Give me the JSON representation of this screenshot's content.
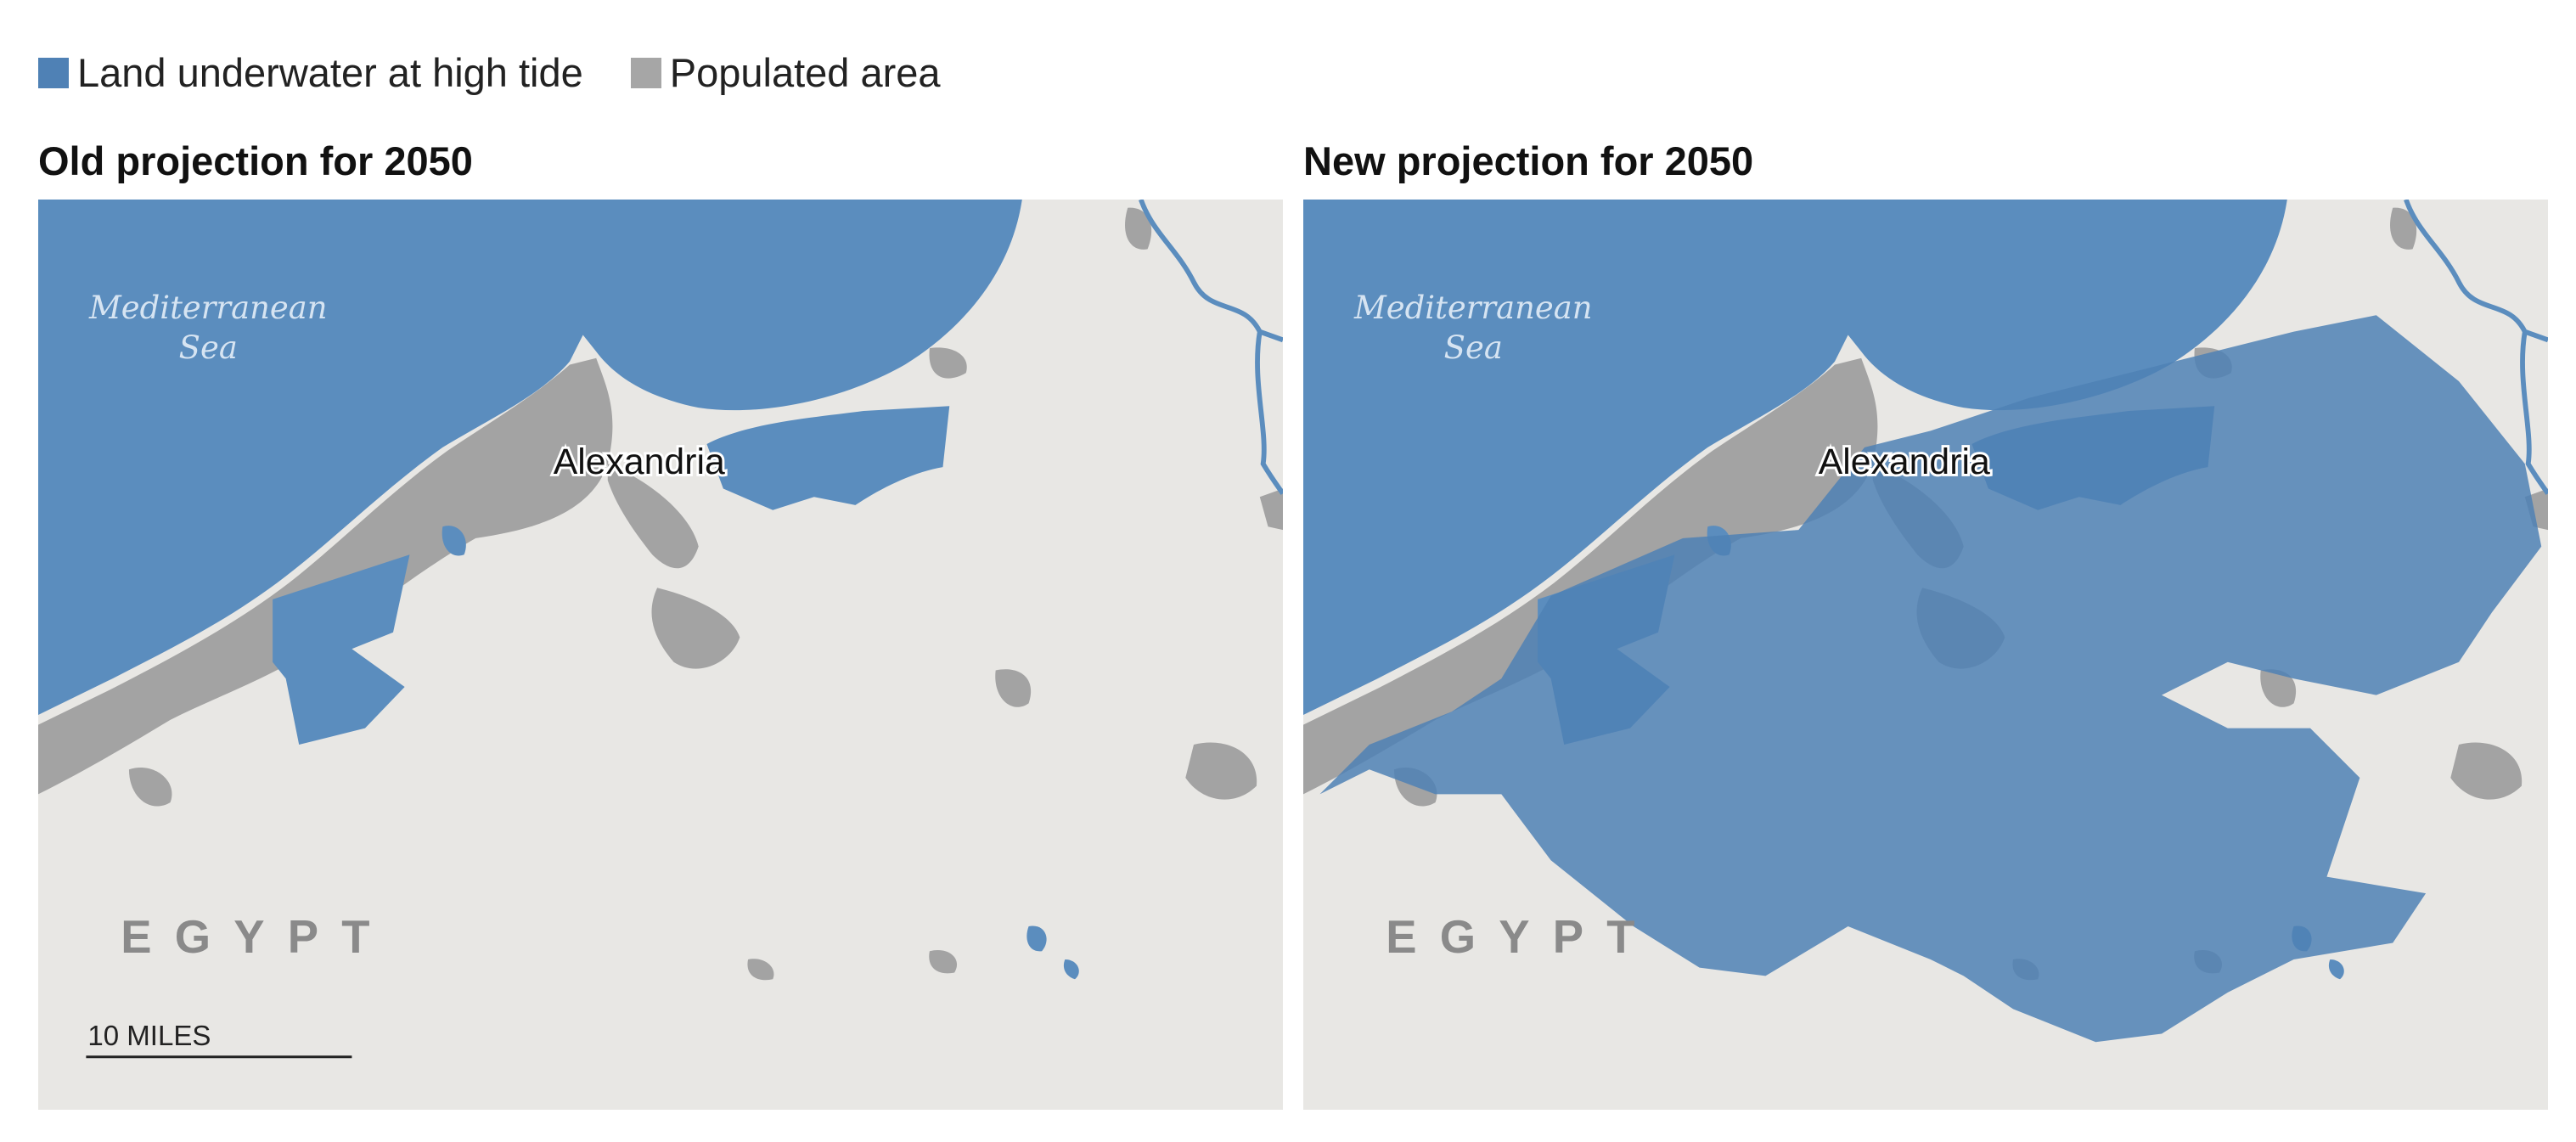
{
  "legend": [
    {
      "label": "Land underwater at high tide"
    },
    {
      "label": "Populated area"
    }
  ],
  "panels": [
    {
      "title": "Old projection for 2050",
      "sea_label": [
        "Mediterranean",
        "Sea"
      ],
      "city_label": "Alexandria",
      "country_label": "EGYPT",
      "scale_bar": "10 MILES"
    },
    {
      "title": "New projection for 2050",
      "sea_label": [
        "Mediterranean",
        "Sea"
      ],
      "city_label": "Alexandria",
      "country_label": "EGYPT"
    }
  ]
}
